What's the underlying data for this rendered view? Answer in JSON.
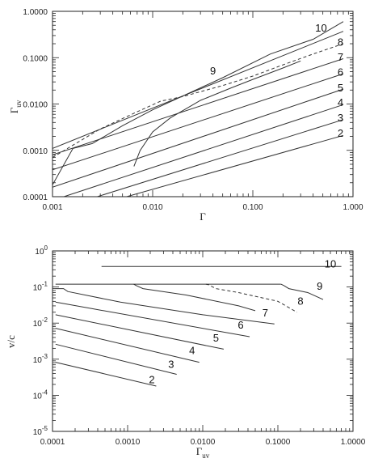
{
  "chart_data": [
    {
      "type": "line",
      "x_scale": "log",
      "y_scale": "log",
      "xlim": [
        0.001,
        1.0
      ],
      "ylim": [
        0.0001,
        1.0
      ],
      "xlabel": "Γ",
      "ylabel": "Γ",
      "ylabel_sub": "uv",
      "x_ticks": [
        {
          "value": 0.001,
          "label": "0.001"
        },
        {
          "value": 0.01,
          "label": "0.010"
        },
        {
          "value": 0.1,
          "label": "0.100"
        },
        {
          "value": 1.0,
          "label": "1.000"
        }
      ],
      "y_ticks": [
        {
          "value": 0.0001,
          "label": "0.0001"
        },
        {
          "value": 0.001,
          "label": "0.0010"
        },
        {
          "value": 0.01,
          "label": "0.0100"
        },
        {
          "value": 0.1,
          "label": "0.1000"
        },
        {
          "value": 1.0,
          "label": "1.0000"
        }
      ],
      "series": [
        {
          "name": "2",
          "style": "solid",
          "label_at": [
            0.75,
            0.0024
          ],
          "points": [
            [
              0.0055,
              0.0001
            ],
            [
              0.8,
              0.0021
            ]
          ]
        },
        {
          "name": "3",
          "style": "solid",
          "label_at": [
            0.75,
            0.0052
          ],
          "points": [
            [
              0.0028,
              0.0001
            ],
            [
              0.8,
              0.0046
            ]
          ]
        },
        {
          "name": "4",
          "style": "solid",
          "label_at": [
            0.75,
            0.011
          ],
          "points": [
            [
              0.0013,
              0.0001
            ],
            [
              0.8,
              0.0097
            ]
          ]
        },
        {
          "name": "5",
          "style": "solid",
          "label_at": [
            0.75,
            0.023
          ],
          "points": [
            [
              0.001,
              0.00016
            ],
            [
              0.8,
              0.021
            ]
          ]
        },
        {
          "name": "6",
          "style": "solid",
          "label_at": [
            0.75,
            0.05
          ],
          "points": [
            [
              0.001,
              0.00038
            ],
            [
              0.8,
              0.045
            ]
          ]
        },
        {
          "name": "7",
          "style": "solid",
          "label_at": [
            0.75,
            0.105
          ],
          "points": [
            [
              0.001,
              0.0008
            ],
            [
              0.8,
              0.095
            ]
          ]
        },
        {
          "name": "8",
          "style": "dashed",
          "label_at": [
            0.75,
            0.22
          ],
          "points": [
            [
              0.001,
              0.0007
            ],
            [
              0.0017,
              0.0014
            ],
            [
              0.003,
              0.0029
            ],
            [
              0.007,
              0.0068
            ],
            [
              0.012,
              0.0115
            ],
            [
              0.02,
              0.0145
            ],
            [
              0.05,
              0.025
            ],
            [
              0.1,
              0.04
            ],
            [
              0.2,
              0.07
            ],
            [
              0.4,
              0.12
            ],
            [
              0.8,
              0.2
            ]
          ]
        },
        {
          "name": "9",
          "style": "solid",
          "label_at": [
            0.04,
            0.053
          ],
          "points": [
            [
              0.0065,
              0.00045
            ],
            [
              0.0075,
              0.001
            ],
            [
              0.01,
              0.0025
            ],
            [
              0.015,
              0.005
            ],
            [
              0.03,
              0.012
            ],
            [
              0.06,
              0.022
            ],
            [
              0.1,
              0.034
            ],
            [
              0.2,
              0.06
            ],
            [
              0.3,
              0.085
            ]
          ]
        },
        {
          "name": "10",
          "style": "solid",
          "label_at": [
            0.48,
            0.45
          ],
          "points": [
            [
              0.001,
              0.00018
            ],
            [
              0.0016,
              0.0011
            ],
            [
              0.0025,
              0.0014
            ],
            [
              0.005,
              0.0034
            ],
            [
              0.01,
              0.0075
            ],
            [
              0.05,
              0.037
            ],
            [
              0.15,
              0.12
            ],
            [
              0.4,
              0.25
            ],
            [
              0.8,
              0.6
            ]
          ]
        },
        {
          "name": "",
          "style": "solid",
          "points": [
            [
              0.001,
              0.0011
            ],
            [
              0.8,
              0.37
            ]
          ]
        }
      ]
    },
    {
      "type": "line",
      "x_scale": "log",
      "y_scale": "log",
      "xlim": [
        0.0001,
        1.0
      ],
      "ylim": [
        1e-05,
        1.0
      ],
      "xlabel": "Γ",
      "xlabel_sub": "uv",
      "ylabel": "v/c",
      "x_ticks": [
        {
          "value": 0.0001,
          "label": "0.0001"
        },
        {
          "value": 0.001,
          "label": "0.0010"
        },
        {
          "value": 0.01,
          "label": "0.0100"
        },
        {
          "value": 0.1,
          "label": "0.1000"
        },
        {
          "value": 1.0,
          "label": "1.0000"
        }
      ],
      "y_ticks": [
        {
          "value": 1.0,
          "base": "10",
          "exp": "0"
        },
        {
          "value": 0.1,
          "base": "10",
          "exp": "-1"
        },
        {
          "value": 0.01,
          "base": "10",
          "exp": "-2"
        },
        {
          "value": 0.001,
          "base": "10",
          "exp": "-3"
        },
        {
          "value": 0.0001,
          "base": "10",
          "exp": "-4"
        },
        {
          "value": 1e-05,
          "base": "10",
          "exp": "-5"
        }
      ],
      "series": [
        {
          "name": "2",
          "style": "solid",
          "label_at": [
            0.0021,
            0.00028
          ],
          "points": [
            [
              0.00011,
              0.00082
            ],
            [
              0.0024,
              0.00018
            ]
          ]
        },
        {
          "name": "3",
          "style": "solid",
          "label_at": [
            0.0038,
            0.00075
          ],
          "points": [
            [
              0.00011,
              0.0026
            ],
            [
              0.0045,
              0.00038
            ]
          ]
        },
        {
          "name": "4",
          "style": "solid",
          "label_at": [
            0.0072,
            0.0018
          ],
          "points": [
            [
              0.00011,
              0.0072
            ],
            [
              0.009,
              0.00082
            ]
          ]
        },
        {
          "name": "5",
          "style": "solid",
          "label_at": [
            0.015,
            0.004
          ],
          "points": [
            [
              0.00011,
              0.017
            ],
            [
              0.019,
              0.0019
            ]
          ]
        },
        {
          "name": "6",
          "style": "solid",
          "label_at": [
            0.032,
            0.009
          ],
          "points": [
            [
              0.00011,
              0.038
            ],
            [
              0.042,
              0.0042
            ]
          ]
        },
        {
          "name": "7",
          "style": "solid",
          "label_at": [
            0.068,
            0.02
          ],
          "points": [
            [
              0.00011,
              0.09
            ],
            [
              0.00014,
              0.09
            ],
            [
              0.00016,
              0.075
            ],
            [
              0.0008,
              0.038
            ],
            [
              0.01,
              0.017
            ],
            [
              0.09,
              0.0095
            ]
          ]
        },
        {
          "name": "8",
          "style": "dashed",
          "label_at": [
            0.2,
            0.042
          ],
          "points": [
            [
              0.011,
              0.12
            ],
            [
              0.012,
              0.115
            ],
            [
              0.015,
              0.09
            ],
            [
              0.03,
              0.07
            ],
            [
              0.1,
              0.04
            ],
            [
              0.18,
              0.02
            ]
          ]
        },
        {
          "name": "9",
          "style": "solid",
          "label_at": [
            0.36,
            0.11
          ],
          "points": [
            [
              0.11,
              0.12
            ],
            [
              0.12,
              0.11
            ],
            [
              0.14,
              0.09
            ],
            [
              0.25,
              0.07
            ],
            [
              0.4,
              0.045
            ]
          ]
        },
        {
          "name": "",
          "style": "solid",
          "points": [
            [
              0.0012,
              0.12
            ],
            [
              0.0013,
              0.11
            ],
            [
              0.0016,
              0.09
            ],
            [
              0.006,
              0.06
            ],
            [
              0.03,
              0.03
            ],
            [
              0.05,
              0.022
            ]
          ]
        },
        {
          "name": "",
          "style": "solid",
          "points": [
            [
              0.00011,
              0.12
            ],
            [
              0.11,
              0.12
            ]
          ]
        },
        {
          "name": "10",
          "style": "solid",
          "label_at": [
            0.5,
            0.45
          ],
          "points": [
            [
              0.00045,
              0.37
            ],
            [
              0.7,
              0.37
            ]
          ]
        }
      ]
    }
  ]
}
